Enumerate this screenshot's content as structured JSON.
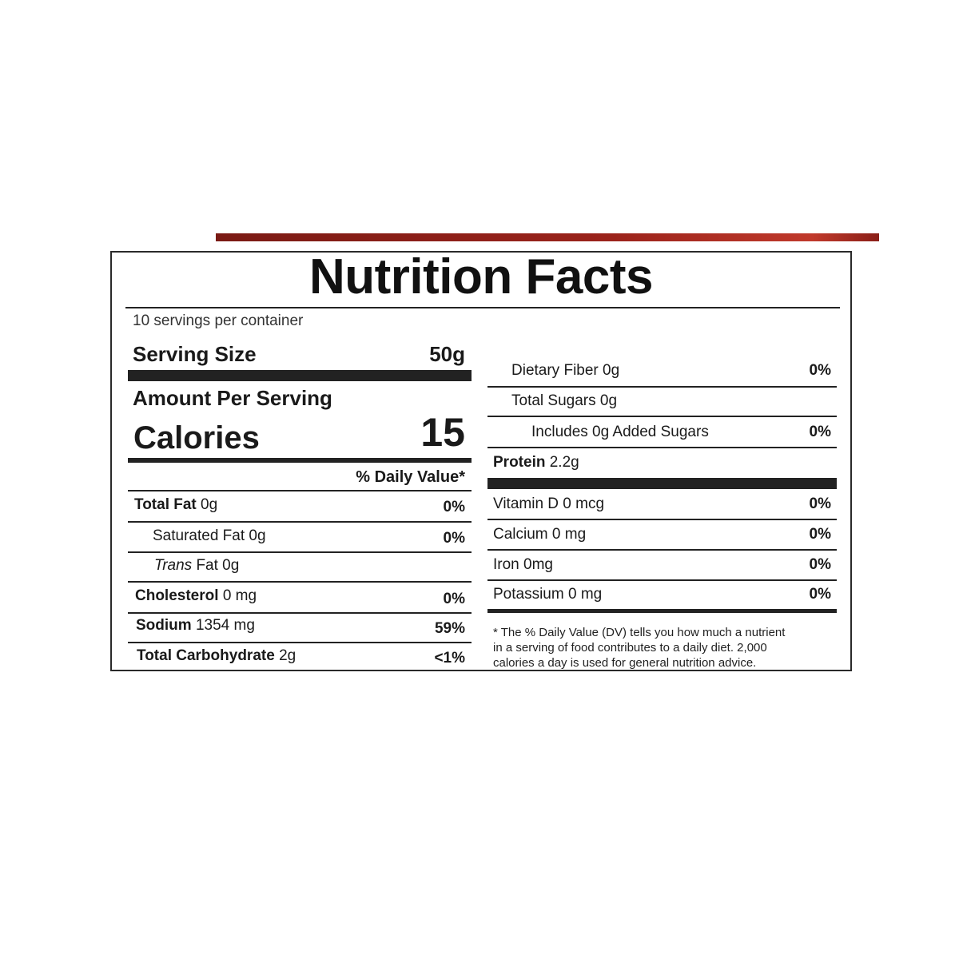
{
  "title": "Nutrition Facts",
  "servings_per_container": "10 servings per container",
  "serving_size": {
    "label": "Serving Size",
    "value": "50g"
  },
  "amount_per_serving": "Amount Per Serving",
  "calories": {
    "label": "Calories",
    "value": "15"
  },
  "daily_value_header": "% Daily Value*",
  "left_rows": [
    {
      "name": "Total Fat",
      "amount": "0g",
      "dv": "0%"
    },
    {
      "name": "Saturated Fat",
      "amount": "0g",
      "dv": "0%"
    },
    {
      "name": "Trans",
      "suffix": "Fat 0g",
      "dv": ""
    },
    {
      "name": "Cholesterol",
      "amount": "0 mg",
      "dv": "0%"
    },
    {
      "name": "Sodium",
      "amount": "1354 mg",
      "dv": "59%"
    },
    {
      "name": "Total Carbohydrate",
      "amount": "2g",
      "dv": "<1%"
    }
  ],
  "right_rows": [
    {
      "name": "Dietary Fiber 0g",
      "dv": "0%"
    },
    {
      "name": "Total Sugars 0g",
      "dv": ""
    },
    {
      "name": "Includes 0g Added Sugars",
      "dv": "0%"
    },
    {
      "name": "Protein",
      "amount": "2.2g"
    },
    {
      "name": "Vitamin D 0 mcg",
      "dv": "0%"
    },
    {
      "name": "Calcium 0 mg",
      "dv": "0%"
    },
    {
      "name": "Iron 0mg",
      "dv": "0%"
    },
    {
      "name": "Potassium 0 mg",
      "dv": "0%"
    }
  ],
  "footnote": [
    "* The % Daily Value (DV) tells you how much a nutrient",
    "in a serving of food contributes to a daily diet. 2,000",
    "calories a day is used for general nutrition advice."
  ]
}
